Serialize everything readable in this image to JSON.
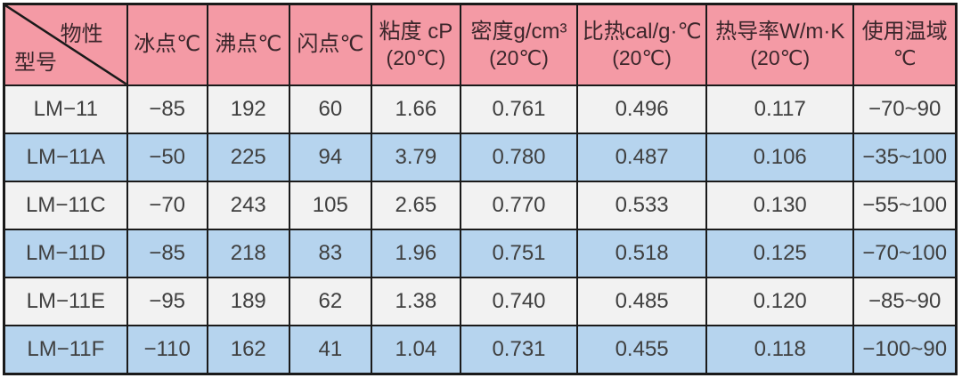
{
  "colors": {
    "header_bg": "#f49aa5",
    "header_text": "#3b262b",
    "row_light": "#f2f2f2",
    "row_dark": "#b6d4ee",
    "body_text": "#3f3f3f",
    "border": "#1a1a1a"
  },
  "table": {
    "corner": {
      "property_label": "物性",
      "model_label": "型号"
    },
    "headers": [
      {
        "line1": "冰点℃",
        "line2": ""
      },
      {
        "line1": "沸点℃",
        "line2": ""
      },
      {
        "line1": "闪点℃",
        "line2": ""
      },
      {
        "line1": "粘度 cP",
        "line2": "(20℃)"
      },
      {
        "line1": "密度g/cm³",
        "line2": "(20℃)"
      },
      {
        "line1": "比热cal/g·℃",
        "line2": "(20℃)"
      },
      {
        "line1": "热导率W/m·K",
        "line2": "(20℃)"
      },
      {
        "line1": "使用温域",
        "line2": "℃"
      }
    ],
    "rows": [
      {
        "model": "LM−11",
        "values": [
          "−85",
          "192",
          "60",
          "1.66",
          "0.761",
          "0.496",
          "0.117",
          "−70~90"
        ]
      },
      {
        "model": "LM−11A",
        "values": [
          "−50",
          "225",
          "94",
          "3.79",
          "0.780",
          "0.487",
          "0.106",
          "−35~100"
        ]
      },
      {
        "model": "LM−11C",
        "values": [
          "−70",
          "243",
          "105",
          "2.65",
          "0.770",
          "0.533",
          "0.130",
          "−55~100"
        ]
      },
      {
        "model": "LM−11D",
        "values": [
          "−85",
          "218",
          "83",
          "1.96",
          "0.751",
          "0.518",
          "0.125",
          "−70~100"
        ]
      },
      {
        "model": "LM−11E",
        "values": [
          "−95",
          "189",
          "62",
          "1.38",
          "0.740",
          "0.485",
          "0.120",
          "−85~90"
        ]
      },
      {
        "model": "LM−11F",
        "values": [
          "−110",
          "162",
          "41",
          "1.04",
          "0.731",
          "0.455",
          "0.118",
          "−100~90"
        ]
      }
    ]
  },
  "chart_data": {
    "type": "table",
    "columns": [
      "型号",
      "冰点℃",
      "沸点℃",
      "闪点℃",
      "粘度 cP (20℃)",
      "密度g/cm³ (20℃)",
      "比热cal/g·℃ (20℃)",
      "热导率W/m·K (20℃)",
      "使用温域 ℃"
    ],
    "rows": [
      [
        "LM−11",
        -85,
        192,
        60,
        1.66,
        0.761,
        0.496,
        0.117,
        "−70~90"
      ],
      [
        "LM−11A",
        -50,
        225,
        94,
        3.79,
        0.78,
        0.487,
        0.106,
        "−35~100"
      ],
      [
        "LM−11C",
        -70,
        243,
        105,
        2.65,
        0.77,
        0.533,
        0.13,
        "−55~100"
      ],
      [
        "LM−11D",
        -85,
        218,
        83,
        1.96,
        0.751,
        0.518,
        0.125,
        "−70~100"
      ],
      [
        "LM−11E",
        -95,
        189,
        62,
        1.38,
        0.74,
        0.485,
        0.12,
        "−85~90"
      ],
      [
        "LM−11F",
        -110,
        162,
        41,
        1.04,
        0.731,
        0.455,
        0.118,
        "−100~90"
      ]
    ]
  }
}
